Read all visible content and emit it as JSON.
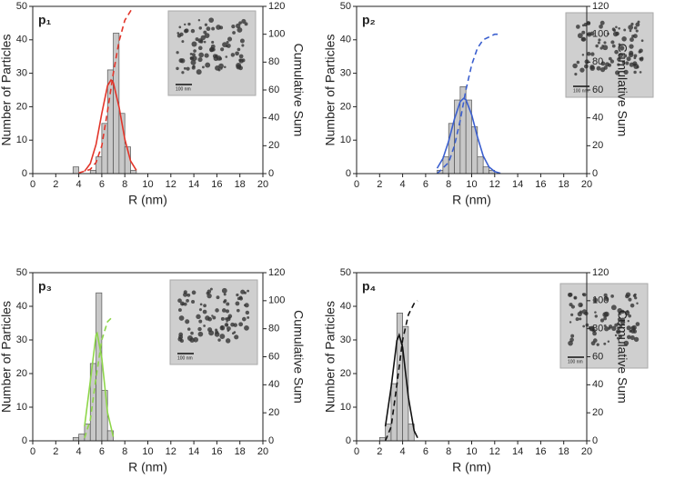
{
  "chart_data": [
    {
      "type": "histogram",
      "panel_label": "p₁",
      "x_label": "R (nm)",
      "y_label": "Number of Particles",
      "y2_label": "Cumulative Sum",
      "inset_label": "100 nm",
      "bins": [
        3.5,
        4,
        4.5,
        5,
        5.5,
        6,
        6.5,
        7,
        7.5,
        8,
        8.5,
        9
      ],
      "counts": [
        2,
        0,
        0,
        1,
        5,
        15,
        31,
        42,
        18,
        8,
        1
      ],
      "bar_color": "#c8c8c8",
      "series": [
        {
          "color": "#e2352a",
          "x": [
            4.5,
            5,
            5.5,
            6,
            6.5,
            6.8,
            7,
            7.5,
            8,
            8.5,
            9
          ],
          "values": [
            0.7,
            3.0,
            8.7,
            18.0,
            26.3,
            28,
            27.2,
            19.9,
            10.3,
            3.8,
            1.0
          ]
        },
        {
          "color": "#e2352a",
          "dashed": true,
          "axis": "y2",
          "x": [
            4,
            5,
            5.5,
            6,
            6.5,
            7,
            7.5,
            8,
            8.6
          ],
          "values": [
            0.5,
            3,
            8,
            20,
            45,
            72,
            95,
            110,
            118
          ]
        }
      ],
      "xlim": [
        0,
        20
      ],
      "xticks": [
        0,
        2,
        4,
        6,
        8,
        10,
        12,
        14,
        16,
        18,
        20
      ],
      "ylim": [
        0,
        50
      ],
      "yticks": [
        0,
        10,
        20,
        30,
        40,
        50
      ],
      "y2lim": [
        0,
        120
      ],
      "y2ticks": [
        0,
        20,
        40,
        60,
        80,
        100,
        120
      ]
    },
    {
      "type": "histogram",
      "panel_label": "p₂",
      "x_label": "R (nm)",
      "y_label": "Number of Particles",
      "y2_label": "Cumulative Sum",
      "inset_label": "100 nm",
      "bins": [
        7,
        7.5,
        8,
        8.5,
        9,
        9.5,
        10,
        10.5,
        11,
        11.5,
        12
      ],
      "counts": [
        1,
        5,
        15,
        22,
        26,
        22,
        14,
        5,
        2,
        1
      ],
      "bar_color": "#c8c8c8",
      "series": [
        {
          "color": "#3b5fcf",
          "x": [
            7,
            7.5,
            8,
            8.5,
            9,
            9.3,
            9.5,
            10,
            10.5,
            11,
            11.5,
            12,
            12.5
          ],
          "values": [
            1.6,
            4.5,
            9.7,
            16.3,
            21.5,
            22.5,
            22.1,
            17.6,
            11.0,
            5.3,
            2.0,
            0.6,
            0.1
          ]
        },
        {
          "color": "#3b5fcf",
          "dashed": true,
          "axis": "y2",
          "x": [
            7,
            8,
            8.5,
            9,
            9.5,
            10,
            10.5,
            11,
            12,
            12.5
          ],
          "values": [
            0,
            8,
            20,
            38,
            60,
            78,
            90,
            96,
            100,
            100
          ]
        }
      ],
      "xlim": [
        0,
        20
      ],
      "xticks": [
        0,
        2,
        4,
        6,
        8,
        10,
        12,
        14,
        16,
        18,
        20
      ],
      "ylim": [
        0,
        50
      ],
      "yticks": [
        0,
        10,
        20,
        30,
        40,
        50
      ],
      "y2lim": [
        0,
        120
      ],
      "y2ticks": [
        0,
        20,
        40,
        60,
        80,
        100,
        120
      ]
    },
    {
      "type": "histogram",
      "panel_label": "p₃",
      "x_label": "R (nm)",
      "y_label": "Number of Particles",
      "y2_label": "Cumulative Sum",
      "inset_label": "100 nm",
      "bins": [
        3.5,
        4,
        4.5,
        5,
        5.5,
        6,
        6.5,
        7
      ],
      "counts": [
        1,
        2,
        5,
        23,
        44,
        15,
        3
      ],
      "bar_color": "#c8c8c8",
      "series": [
        {
          "color": "#8ed64a",
          "x": [
            4.5,
            5,
            5.5,
            5.6,
            6,
            6.5,
            7
          ],
          "values": [
            4.3,
            17.7,
            31.5,
            32,
            24.6,
            8.4,
            1.2
          ]
        },
        {
          "color": "#8ed64a",
          "dashed": true,
          "axis": "y2",
          "x": [
            4.5,
            5,
            5.5,
            6,
            6.5,
            7
          ],
          "values": [
            2,
            15,
            45,
            72,
            85,
            89
          ]
        }
      ],
      "xlim": [
        0,
        20
      ],
      "xticks": [
        0,
        2,
        4,
        6,
        8,
        10,
        12,
        14,
        16,
        18,
        20
      ],
      "ylim": [
        0,
        50
      ],
      "yticks": [
        0,
        10,
        20,
        30,
        40,
        50
      ],
      "y2lim": [
        0,
        120
      ],
      "y2ticks": [
        0,
        20,
        40,
        60,
        80,
        100,
        120
      ]
    },
    {
      "type": "histogram",
      "panel_label": "p₄",
      "x_label": "R (nm)",
      "y_label": "Number of Particles",
      "y2_label": "Cumulative Sum",
      "inset_label": "100 nm",
      "bins": [
        2,
        2.5,
        3,
        3.5,
        4,
        4.5,
        5
      ],
      "counts": [
        1,
        5,
        17,
        38,
        34,
        5
      ],
      "bar_color": "#c8c8c8",
      "series": [
        {
          "color": "#111111",
          "x": [
            2.5,
            3,
            3.5,
            3.7,
            4,
            4.5,
            5,
            5.3
          ],
          "values": [
            4.3,
            15.9,
            29.8,
            31.5,
            27.8,
            12.9,
            3.0,
            0.9
          ]
        },
        {
          "color": "#111111",
          "dashed": true,
          "axis": "y2",
          "x": [
            2.5,
            3,
            3.5,
            4,
            4.5,
            5,
            5.3
          ],
          "values": [
            0,
            10,
            40,
            72,
            90,
            98,
            100
          ]
        }
      ],
      "xlim": [
        0,
        20
      ],
      "xticks": [
        0,
        2,
        4,
        6,
        8,
        10,
        12,
        14,
        16,
        18,
        20
      ],
      "ylim": [
        0,
        50
      ],
      "yticks": [
        0,
        10,
        20,
        30,
        40,
        50
      ],
      "y2lim": [
        0,
        120
      ],
      "y2ticks": [
        0,
        20,
        40,
        60,
        80,
        100,
        120
      ]
    }
  ]
}
